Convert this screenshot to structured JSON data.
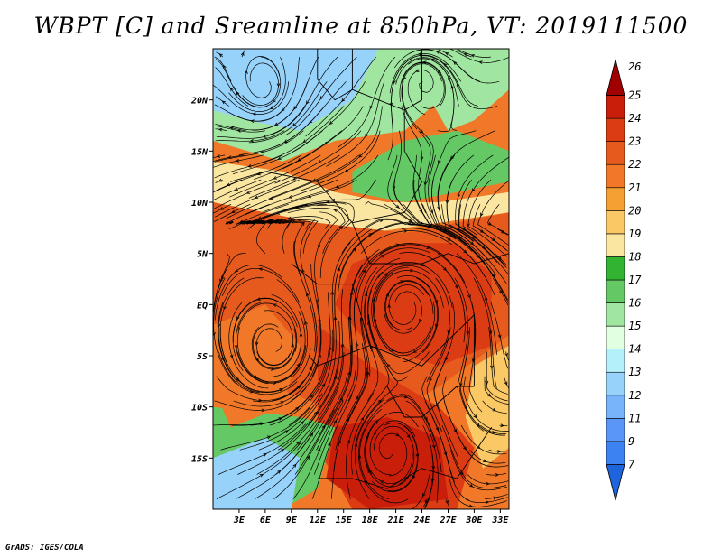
{
  "chart_data": {
    "type": "heatmap",
    "title": "WBPT [C] and Sreamline at 850hPa, VT: 2019111500",
    "x_ticks": [
      "3E",
      "6E",
      "9E",
      "12E",
      "15E",
      "18E",
      "21E",
      "24E",
      "27E",
      "30E",
      "33E"
    ],
    "x_tick_values": [
      3,
      6,
      9,
      12,
      15,
      18,
      21,
      24,
      27,
      30,
      33
    ],
    "y_ticks": [
      "20N",
      "15N",
      "10N",
      "5N",
      "EQ",
      "5S",
      "10S",
      "15S"
    ],
    "y_tick_values": [
      20,
      15,
      10,
      5,
      0,
      -5,
      -10,
      -15
    ],
    "xlim": [
      0,
      34
    ],
    "ylim": [
      -20,
      25
    ],
    "colorbar": {
      "levels": [
        "7",
        "9",
        "11",
        "12",
        "13",
        "14",
        "15",
        "16",
        "17",
        "18",
        "19",
        "20",
        "21",
        "22",
        "23",
        "24",
        "25",
        "26"
      ],
      "colors": [
        "#1e64dc",
        "#3c82f0",
        "#5a96f5",
        "#78b4fa",
        "#96d2fa",
        "#b4f0fa",
        "#e1ffe1",
        "#a0e6a0",
        "#64c864",
        "#32b432",
        "#fae6a0",
        "#fac864",
        "#f5a032",
        "#f07828",
        "#e65a1e",
        "#dc3c14",
        "#c81e0a",
        "#a00000"
      ]
    },
    "fields": [
      {
        "region": "northern-cool-band",
        "value": 13
      },
      {
        "region": "sahel-green-band",
        "value": 16
      },
      {
        "region": "transition-band",
        "value": 19
      },
      {
        "region": "equatorial-warm-core",
        "value": 24
      },
      {
        "region": "southern-warm-core",
        "value": 25
      },
      {
        "region": "southwest-cool-pocket",
        "value": 14
      }
    ]
  },
  "footer": "GrADS: IGES/COLA"
}
